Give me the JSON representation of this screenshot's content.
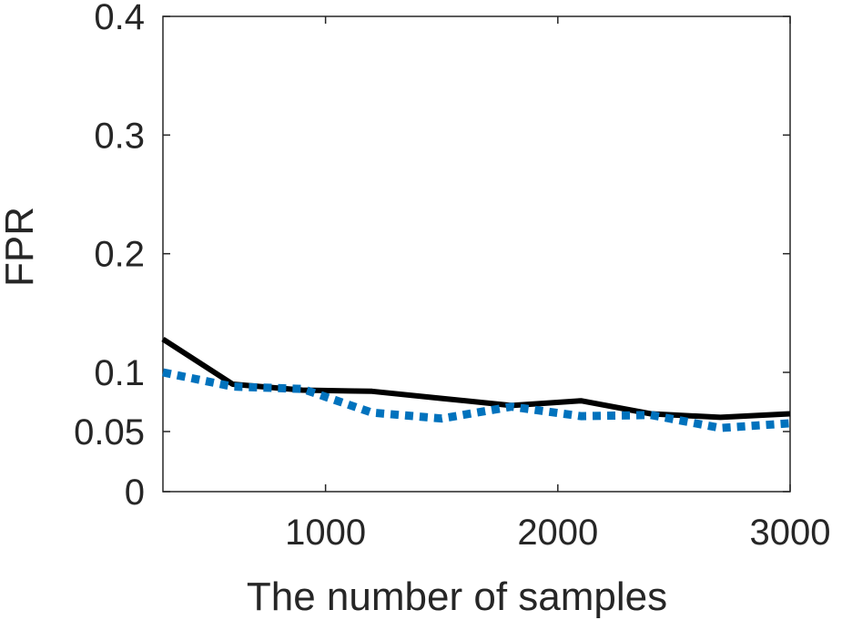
{
  "chart_data": {
    "type": "line",
    "title": "",
    "xlabel": "The number of samples",
    "ylabel": "FPR",
    "xlim": [
      300,
      3000
    ],
    "ylim": [
      0,
      0.4
    ],
    "xticks": [
      1000,
      2000,
      3000
    ],
    "xtick_labels": [
      "1000",
      "2000",
      "3000"
    ],
    "yticks": [
      0,
      0.05,
      0.1,
      0.2,
      0.3,
      0.4
    ],
    "ytick_labels": [
      "0",
      "0.05",
      "0.1",
      "0.2",
      "0.3",
      "0.4"
    ],
    "grid": false,
    "x": [
      300,
      600,
      900,
      1200,
      1500,
      1800,
      2100,
      2400,
      2700,
      3000
    ],
    "series": [
      {
        "color": "#000000",
        "style": "solid",
        "values": [
          0.128,
          0.09,
          0.085,
          0.084,
          0.078,
          0.072,
          0.076,
          0.065,
          0.062,
          0.065
        ]
      },
      {
        "color": "#0072BD",
        "style": "dotted",
        "values": [
          0.1,
          0.088,
          0.086,
          0.066,
          0.061,
          0.071,
          0.063,
          0.064,
          0.053,
          0.057
        ]
      }
    ]
  }
}
